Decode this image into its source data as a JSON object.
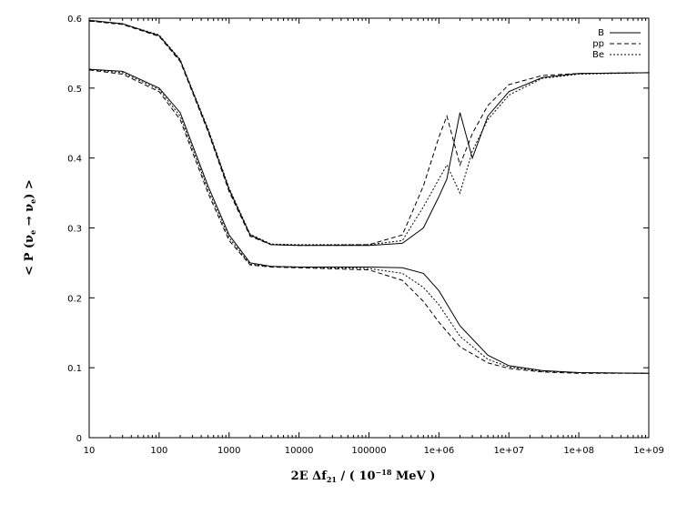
{
  "chart_data": {
    "type": "line",
    "x_scale": "log",
    "xlim": [
      10,
      1000000000
    ],
    "ylim": [
      0,
      0.6
    ],
    "x_ticks": [
      10,
      100,
      1000,
      10000,
      100000,
      1000000,
      10000000,
      100000000,
      1000000000
    ],
    "x_tick_labels": [
      "10",
      "100",
      "1000",
      "10000",
      "100000",
      "1e+06",
      "1e+07",
      "1e+08",
      "1e+09"
    ],
    "y_ticks": [
      0,
      0.1,
      0.2,
      0.3,
      0.4,
      0.5,
      0.6
    ],
    "y_tick_labels": [
      "0",
      "0.1",
      "0.2",
      "0.3",
      "0.4",
      "0.5",
      "0.6"
    ],
    "xlabel": {
      "prefix": "2E Δf",
      "sub": "21",
      "mid": " / ( 10",
      "sup": "−18",
      "suffix": " MeV )"
    },
    "ylabel": {
      "prefix": "< P (ν",
      "sub1": "e",
      "mid": " → ν",
      "sub2": "e",
      "suffix": ") >"
    },
    "legend_position": "top-right",
    "grid": false,
    "series": [
      {
        "name": "B",
        "dash": "solid",
        "curves": [
          {
            "x": [
              10,
              30,
              100,
              200,
              500,
              1000,
              2000,
              4000,
              10000,
              100000,
              300000,
              600000,
              1000000,
              1300000,
              2000000,
              3000000,
              5000000,
              10000000,
              30000000,
              100000000,
              1000000000
            ],
            "y": [
              0.597,
              0.592,
              0.575,
              0.54,
              0.44,
              0.355,
              0.29,
              0.276,
              0.275,
              0.275,
              0.278,
              0.3,
              0.345,
              0.37,
              0.465,
              0.4,
              0.46,
              0.495,
              0.515,
              0.521,
              0.522
            ]
          },
          {
            "x": [
              10,
              30,
              100,
              200,
              500,
              1000,
              2000,
              4000,
              10000,
              100000,
              300000,
              600000,
              1000000,
              2000000,
              5000000,
              10000000,
              30000000,
              100000000,
              1000000000
            ],
            "y": [
              0.527,
              0.524,
              0.5,
              0.465,
              0.36,
              0.29,
              0.25,
              0.245,
              0.244,
              0.244,
              0.243,
              0.235,
              0.21,
              0.16,
              0.118,
              0.103,
              0.096,
              0.093,
              0.092
            ]
          }
        ]
      },
      {
        "name": "pp",
        "dash": "dashed",
        "curves": [
          {
            "x": [
              10,
              30,
              100,
              200,
              500,
              1000,
              2000,
              4000,
              10000,
              100000,
              300000,
              600000,
              1000000,
              1300000,
              2000000,
              3000000,
              5000000,
              10000000,
              30000000,
              100000000,
              1000000000
            ],
            "y": [
              0.596,
              0.591,
              0.574,
              0.538,
              0.438,
              0.352,
              0.288,
              0.276,
              0.275,
              0.276,
              0.29,
              0.36,
              0.43,
              0.46,
              0.39,
              0.435,
              0.475,
              0.505,
              0.518,
              0.521,
              0.522
            ]
          },
          {
            "x": [
              10,
              30,
              100,
              200,
              500,
              1000,
              2000,
              4000,
              10000,
              100000,
              300000,
              600000,
              1000000,
              2000000,
              5000000,
              10000000,
              30000000,
              100000000,
              1000000000
            ],
            "y": [
              0.526,
              0.52,
              0.495,
              0.455,
              0.35,
              0.282,
              0.247,
              0.244,
              0.243,
              0.24,
              0.225,
              0.195,
              0.165,
              0.13,
              0.107,
              0.099,
              0.094,
              0.092,
              0.092
            ]
          }
        ]
      },
      {
        "name": "Be",
        "dash": "dotted",
        "curves": [
          {
            "x": [
              10,
              30,
              100,
              200,
              500,
              1000,
              2000,
              4000,
              10000,
              100000,
              300000,
              600000,
              1000000,
              1300000,
              2000000,
              3000000,
              5000000,
              10000000,
              30000000,
              100000000,
              1000000000
            ],
            "y": [
              0.596,
              0.592,
              0.576,
              0.541,
              0.442,
              0.357,
              0.291,
              0.277,
              0.276,
              0.276,
              0.282,
              0.33,
              0.37,
              0.39,
              0.35,
              0.41,
              0.455,
              0.49,
              0.514,
              0.52,
              0.522
            ]
          },
          {
            "x": [
              10,
              30,
              100,
              200,
              500,
              1000,
              2000,
              4000,
              10000,
              100000,
              300000,
              600000,
              1000000,
              2000000,
              5000000,
              10000000,
              30000000,
              100000000,
              1000000000
            ],
            "y": [
              0.527,
              0.522,
              0.498,
              0.46,
              0.355,
              0.286,
              0.248,
              0.245,
              0.244,
              0.242,
              0.235,
              0.215,
              0.19,
              0.145,
              0.112,
              0.101,
              0.095,
              0.093,
              0.092
            ]
          }
        ]
      }
    ]
  }
}
